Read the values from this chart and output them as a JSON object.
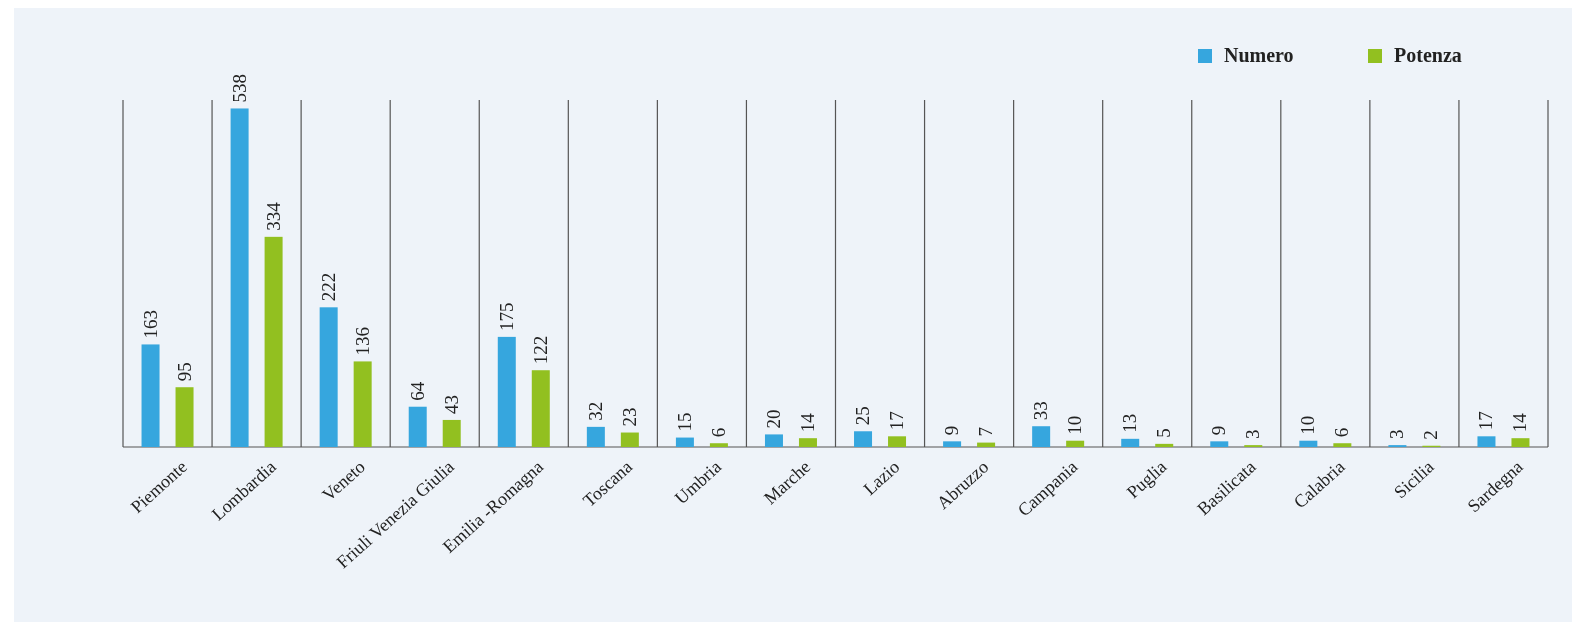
{
  "chart_data": {
    "type": "bar",
    "categories": [
      "Piemonte",
      "Lombardia",
      "Veneto",
      "Friuli Venezia Giulia",
      "Emilia -Romagna",
      "Toscana",
      "Umbria",
      "Marche",
      "Lazio",
      "Abruzzo",
      "Campania",
      "Puglia",
      "Basilicata",
      "Calabria",
      "Sicilia",
      "Sardegna"
    ],
    "series": [
      {
        "name": "Numero",
        "color": "#36a6de",
        "values": [
          163,
          538,
          222,
          64,
          175,
          32,
          15,
          20,
          25,
          9,
          33,
          13,
          9,
          10,
          3,
          17
        ]
      },
      {
        "name": "Potenza",
        "color": "#92c020",
        "values": [
          95,
          334,
          136,
          43,
          122,
          23,
          6,
          14,
          17,
          7,
          10,
          5,
          3,
          6,
          2,
          14
        ]
      }
    ],
    "data_labels": true,
    "grid": "x",
    "legend": "top right"
  }
}
